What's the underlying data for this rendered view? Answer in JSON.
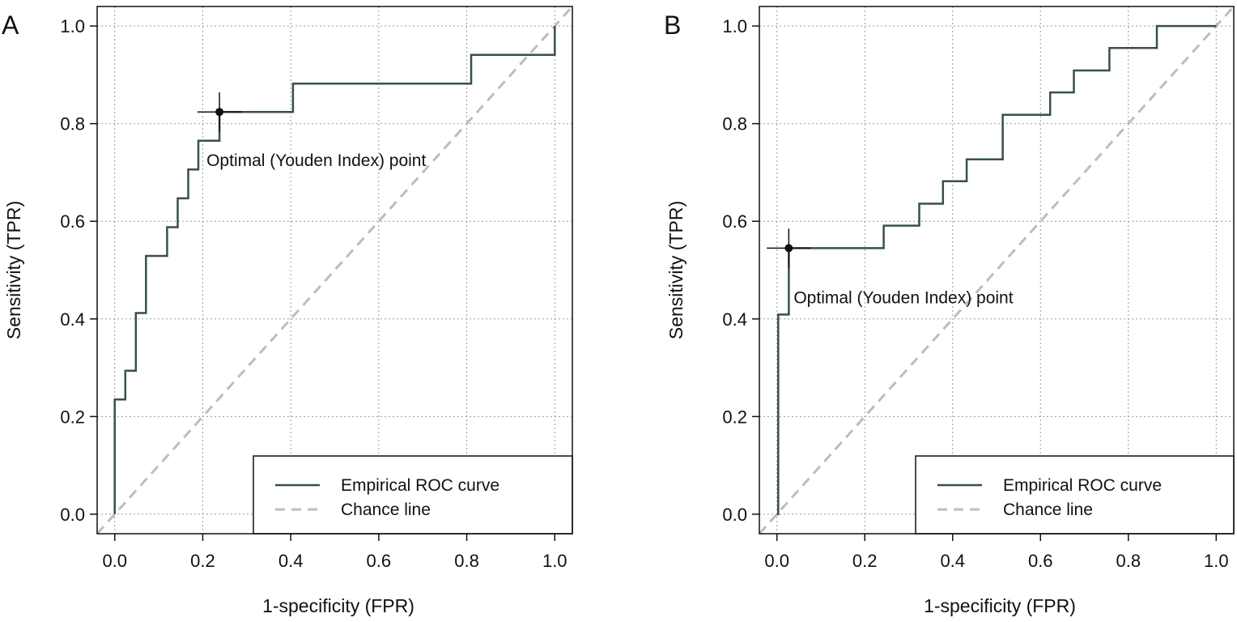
{
  "chart_data": [
    {
      "type": "line",
      "panel_label": "A",
      "xlabel": "1-specificity (FPR)",
      "ylabel": "Sensitivity (TPR)",
      "xlim": [
        -0.04,
        1.04
      ],
      "ylim": [
        -0.04,
        1.04
      ],
      "xticks": [
        "0.0",
        "0.2",
        "0.4",
        "0.6",
        "0.8",
        "1.0"
      ],
      "yticks": [
        "0.0",
        "0.2",
        "0.4",
        "0.6",
        "0.8",
        "1.0"
      ],
      "grid": true,
      "legend_position": "bottom-right",
      "series": [
        {
          "name": "Empirical ROC curve",
          "style": "step",
          "color": "#37504d",
          "x": [
            0,
            0,
            0.024,
            0.024,
            0.048,
            0.048,
            0.071,
            0.071,
            0.119,
            0.119,
            0.143,
            0.143,
            0.167,
            0.167,
            0.19,
            0.19,
            0.238,
            0.238,
            0.405,
            0.405,
            0.81,
            0.81,
            1.0,
            1.0
          ],
          "y": [
            0,
            0.235,
            0.235,
            0.294,
            0.294,
            0.412,
            0.412,
            0.529,
            0.529,
            0.588,
            0.588,
            0.647,
            0.647,
            0.706,
            0.706,
            0.765,
            0.765,
            0.824,
            0.824,
            0.882,
            0.882,
            0.941,
            0.941,
            1.0
          ]
        },
        {
          "name": "Chance line",
          "style": "dashed",
          "color": "#bdbdbd",
          "x": [
            -0.04,
            1.04
          ],
          "y": [
            -0.04,
            1.04
          ]
        }
      ],
      "optimal_point": {
        "x": 0.238,
        "y": 0.824,
        "x_err": 0.05,
        "y_err": 0.04
      },
      "annotation": "Optimal (Youden Index) point"
    },
    {
      "type": "line",
      "panel_label": "B",
      "xlabel": "1-specificity (FPR)",
      "ylabel": "Sensitivity (TPR)",
      "xlim": [
        -0.04,
        1.04
      ],
      "ylim": [
        -0.04,
        1.04
      ],
      "xticks": [
        "0.0",
        "0.2",
        "0.4",
        "0.6",
        "0.8",
        "1.0"
      ],
      "yticks": [
        "0.0",
        "0.2",
        "0.4",
        "0.6",
        "0.8",
        "1.0"
      ],
      "grid": true,
      "legend_position": "bottom-right",
      "series": [
        {
          "name": "Empirical ROC curve",
          "style": "step",
          "color": "#37504d",
          "x": [
            0,
            0.003,
            0.003,
            0.027,
            0.027,
            0.243,
            0.243,
            0.324,
            0.324,
            0.378,
            0.378,
            0.432,
            0.432,
            0.514,
            0.514,
            0.622,
            0.622,
            0.676,
            0.676,
            0.757,
            0.757,
            0.865,
            0.865,
            1.0
          ],
          "y": [
            0,
            0,
            0.409,
            0.409,
            0.545,
            0.545,
            0.591,
            0.591,
            0.636,
            0.636,
            0.682,
            0.682,
            0.727,
            0.727,
            0.818,
            0.818,
            0.864,
            0.864,
            0.909,
            0.909,
            0.955,
            0.955,
            1.0,
            1.0
          ]
        },
        {
          "name": "Chance line",
          "style": "dashed",
          "color": "#bdbdbd",
          "x": [
            -0.04,
            1.04
          ],
          "y": [
            -0.04,
            1.04
          ]
        }
      ],
      "optimal_point": {
        "x": 0.027,
        "y": 0.545,
        "x_err": 0.05,
        "y_err": 0.04
      },
      "annotation": "Optimal (Youden Index) point"
    }
  ]
}
